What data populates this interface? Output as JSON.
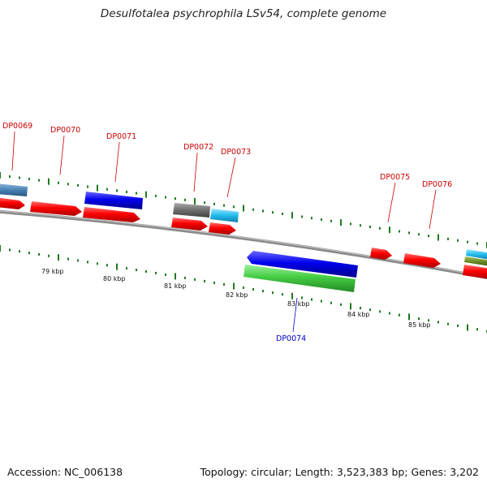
{
  "title": "Desulfotalea psychrophila LSv54, complete genome",
  "footer": {
    "accession": "Accession: NC_006138",
    "summary": "Topology: circular; Length: 3,523,383 bp; Genes: 3,202"
  },
  "scale_labels": [
    "79 kbp",
    "80 kbp",
    "81 kbp",
    "82 kbp",
    "83 kbp",
    "84 kbp",
    "85 kbp"
  ],
  "gene_labels": [
    {
      "text": "DP0069",
      "color": "#cc0000"
    },
    {
      "text": "DP0070",
      "color": "#cc0000"
    },
    {
      "text": "DP0071",
      "color": "#cc0000"
    },
    {
      "text": "DP0072",
      "color": "#cc0000"
    },
    {
      "text": "DP0073",
      "color": "#cc0000"
    },
    {
      "text": "DP0074",
      "color": "#0000cc"
    },
    {
      "text": "DP0075",
      "color": "#cc0000"
    },
    {
      "text": "DP0076",
      "color": "#cc0000"
    }
  ],
  "colors": {
    "forward_cds": "#ff0000",
    "backbone": "#8a8a8a",
    "gc_ticks": "#1e7a1e",
    "blue_feature": "#0000ee",
    "green_feature": "#44cc44",
    "steel_feature": "#4682b4",
    "grey_feature": "#6e6e6e",
    "cyan_feature": "#22bbee",
    "olive_feature": "#6b8e23"
  }
}
